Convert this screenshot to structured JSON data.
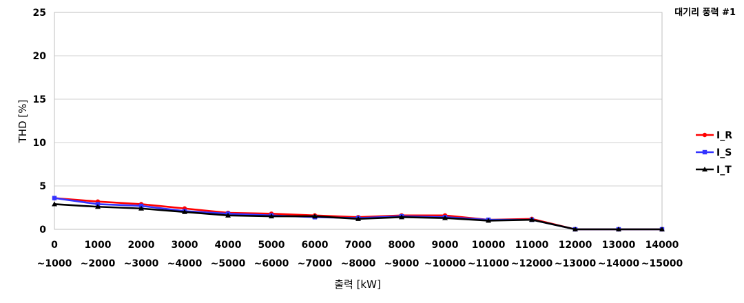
{
  "chart_data": {
    "type": "line",
    "corner_label": "대기리 풍력 #1",
    "xlabel": "출력 [kW]",
    "ylabel": "THD [%]",
    "ylim": [
      0,
      25
    ],
    "yticks": [
      "0",
      "5",
      "10",
      "15",
      "20",
      "25"
    ],
    "grid": true,
    "legend_position": "right",
    "categories": [
      {
        "top": "0",
        "bottom": "~1000"
      },
      {
        "top": "1000",
        "bottom": "~2000"
      },
      {
        "top": "2000",
        "bottom": "~3000"
      },
      {
        "top": "3000",
        "bottom": "~4000"
      },
      {
        "top": "4000",
        "bottom": "~5000"
      },
      {
        "top": "5000",
        "bottom": "~6000"
      },
      {
        "top": "6000",
        "bottom": "~7000"
      },
      {
        "top": "7000",
        "bottom": "~8000"
      },
      {
        "top": "8000",
        "bottom": "~9000"
      },
      {
        "top": "9000",
        "bottom": "~10000"
      },
      {
        "top": "10000",
        "bottom": "~11000"
      },
      {
        "top": "11000",
        "bottom": "~12000"
      },
      {
        "top": "12000",
        "bottom": "~13000"
      },
      {
        "top": "13000",
        "bottom": "~14000"
      },
      {
        "top": "14000",
        "bottom": "~15000"
      }
    ],
    "series": [
      {
        "name": "I_R",
        "color": "#ff0000",
        "marker": "circle",
        "values": [
          3.6,
          3.2,
          2.9,
          2.4,
          1.9,
          1.8,
          1.6,
          1.4,
          1.6,
          1.6,
          1.1,
          1.2,
          0.0,
          0.0,
          0.0
        ]
      },
      {
        "name": "I_S",
        "color": "#3333ff",
        "marker": "square",
        "values": [
          3.6,
          2.9,
          2.7,
          2.1,
          1.8,
          1.6,
          1.4,
          1.3,
          1.5,
          1.4,
          1.1,
          1.1,
          0.0,
          0.0,
          0.0
        ]
      },
      {
        "name": "I_T",
        "color": "#000000",
        "marker": "triangle",
        "values": [
          2.9,
          2.6,
          2.4,
          2.0,
          1.6,
          1.5,
          1.5,
          1.2,
          1.4,
          1.3,
          1.0,
          1.1,
          0.0,
          0.0,
          0.0
        ]
      }
    ]
  }
}
